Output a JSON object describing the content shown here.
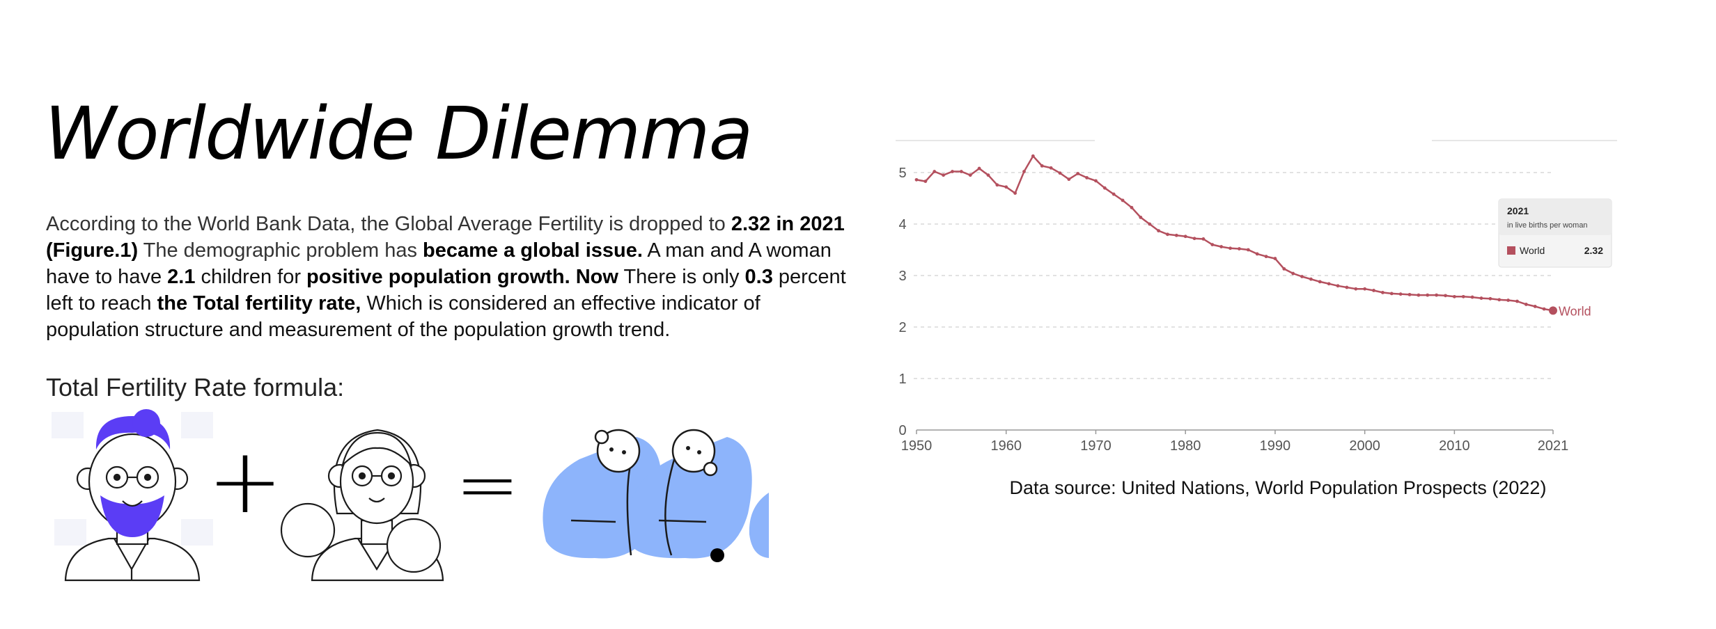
{
  "page": {
    "title": "Worldwide Dilemma",
    "intro": {
      "p1": "According to the World Bank Data, the Global Average Fertility is dropped to ",
      "b1": "2.32 in 2021 (Figure.1)",
      "p2": " The demographic problem has ",
      "b2": "became a global issue.",
      "p3": " A man and A woman have to have ",
      "b3": "2.1",
      "p4": " children for ",
      "b4": "positive population growth. Now",
      "p5": " There is only ",
      "b5": "0.3",
      "p6": " percent left to reach ",
      "b6": "the Total fertility rate,",
      "p7": " Which is considered an effective indicator of population structure and measurement of the population growth trend."
    },
    "formula_label": "Total Fertility Rate formula:",
    "formula_plus": "+",
    "formula_equals": "=",
    "source": "Data source: United Nations, World Population Prospects (2022)",
    "colors": {
      "accent": "#5b3df5",
      "baby_blue": "#8db4fb",
      "line": "#b4505e"
    }
  },
  "chart_data": {
    "type": "line",
    "title": "",
    "xlabel": "",
    "ylabel": "",
    "xlim": [
      1950,
      2021
    ],
    "ylim": [
      0,
      5
    ],
    "y_ticks": [
      0,
      1,
      2,
      3,
      4,
      5
    ],
    "x_ticks": [
      1950,
      1960,
      1970,
      1980,
      1990,
      2000,
      2010,
      2021
    ],
    "grid": true,
    "series": [
      {
        "name": "World",
        "color": "#b4505e",
        "end_label": "World",
        "x": [
          1950,
          1951,
          1952,
          1953,
          1954,
          1955,
          1956,
          1957,
          1958,
          1959,
          1960,
          1961,
          1962,
          1963,
          1964,
          1965,
          1966,
          1967,
          1968,
          1969,
          1970,
          1971,
          1972,
          1973,
          1974,
          1975,
          1976,
          1977,
          1978,
          1979,
          1980,
          1981,
          1982,
          1983,
          1984,
          1985,
          1986,
          1987,
          1988,
          1989,
          1990,
          1991,
          1992,
          1993,
          1994,
          1995,
          1996,
          1997,
          1998,
          1999,
          2000,
          2001,
          2002,
          2003,
          2004,
          2005,
          2006,
          2007,
          2008,
          2009,
          2010,
          2011,
          2012,
          2013,
          2014,
          2015,
          2016,
          2017,
          2018,
          2019,
          2020,
          2021
        ],
        "y": [
          4.86,
          4.83,
          5.02,
          4.95,
          5.02,
          5.02,
          4.95,
          5.08,
          4.95,
          4.76,
          4.72,
          4.6,
          5.02,
          5.32,
          5.13,
          5.09,
          4.99,
          4.87,
          4.98,
          4.9,
          4.84,
          4.7,
          4.58,
          4.46,
          4.32,
          4.13,
          4.0,
          3.87,
          3.8,
          3.78,
          3.76,
          3.72,
          3.71,
          3.6,
          3.56,
          3.53,
          3.52,
          3.5,
          3.42,
          3.37,
          3.33,
          3.13,
          3.04,
          2.98,
          2.93,
          2.88,
          2.84,
          2.8,
          2.77,
          2.74,
          2.74,
          2.71,
          2.67,
          2.65,
          2.64,
          2.63,
          2.62,
          2.62,
          2.62,
          2.61,
          2.59,
          2.59,
          2.58,
          2.56,
          2.55,
          2.53,
          2.52,
          2.5,
          2.44,
          2.4,
          2.35,
          2.32
        ]
      }
    ],
    "tooltip": {
      "year": "2021",
      "subtitle": "in live births per woman",
      "series_name": "World",
      "value": "2.32"
    }
  }
}
